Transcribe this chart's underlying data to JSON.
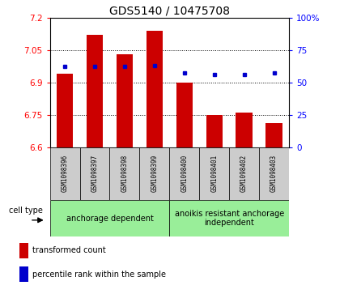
{
  "title": "GDS5140 / 10475708",
  "samples": [
    "GSM1098396",
    "GSM1098397",
    "GSM1098398",
    "GSM1098399",
    "GSM1098400",
    "GSM1098401",
    "GSM1098402",
    "GSM1098403"
  ],
  "transformed_counts": [
    6.94,
    7.12,
    7.03,
    7.14,
    6.9,
    6.75,
    6.76,
    6.71
  ],
  "percentile_ranks": [
    62,
    62,
    62,
    63,
    57,
    56,
    56,
    57
  ],
  "ylim_left": [
    6.6,
    7.2
  ],
  "ylim_right": [
    0,
    100
  ],
  "yticks_left": [
    6.6,
    6.75,
    6.9,
    7.05,
    7.2
  ],
  "yticks_right": [
    0,
    25,
    50,
    75,
    100
  ],
  "ytick_labels_left": [
    "6.6",
    "6.75",
    "6.9",
    "7.05",
    "7.2"
  ],
  "ytick_labels_right": [
    "0",
    "25",
    "50",
    "75",
    "100%"
  ],
  "bar_color": "#cc0000",
  "dot_color": "#0000cc",
  "bar_bottom": 6.6,
  "groups": [
    {
      "label": "anchorage dependent",
      "indices": [
        0,
        1,
        2,
        3
      ],
      "color": "#99ee99"
    },
    {
      "label": "anoikis resistant anchorage\nindependent",
      "indices": [
        4,
        5,
        6,
        7
      ],
      "color": "#99ee99"
    }
  ],
  "cell_type_label": "cell type",
  "legend_items": [
    {
      "color": "#cc0000",
      "label": "transformed count"
    },
    {
      "color": "#0000cc",
      "label": "percentile rank within the sample"
    }
  ],
  "tick_bg_color": "#cccccc",
  "title_fontsize": 10
}
